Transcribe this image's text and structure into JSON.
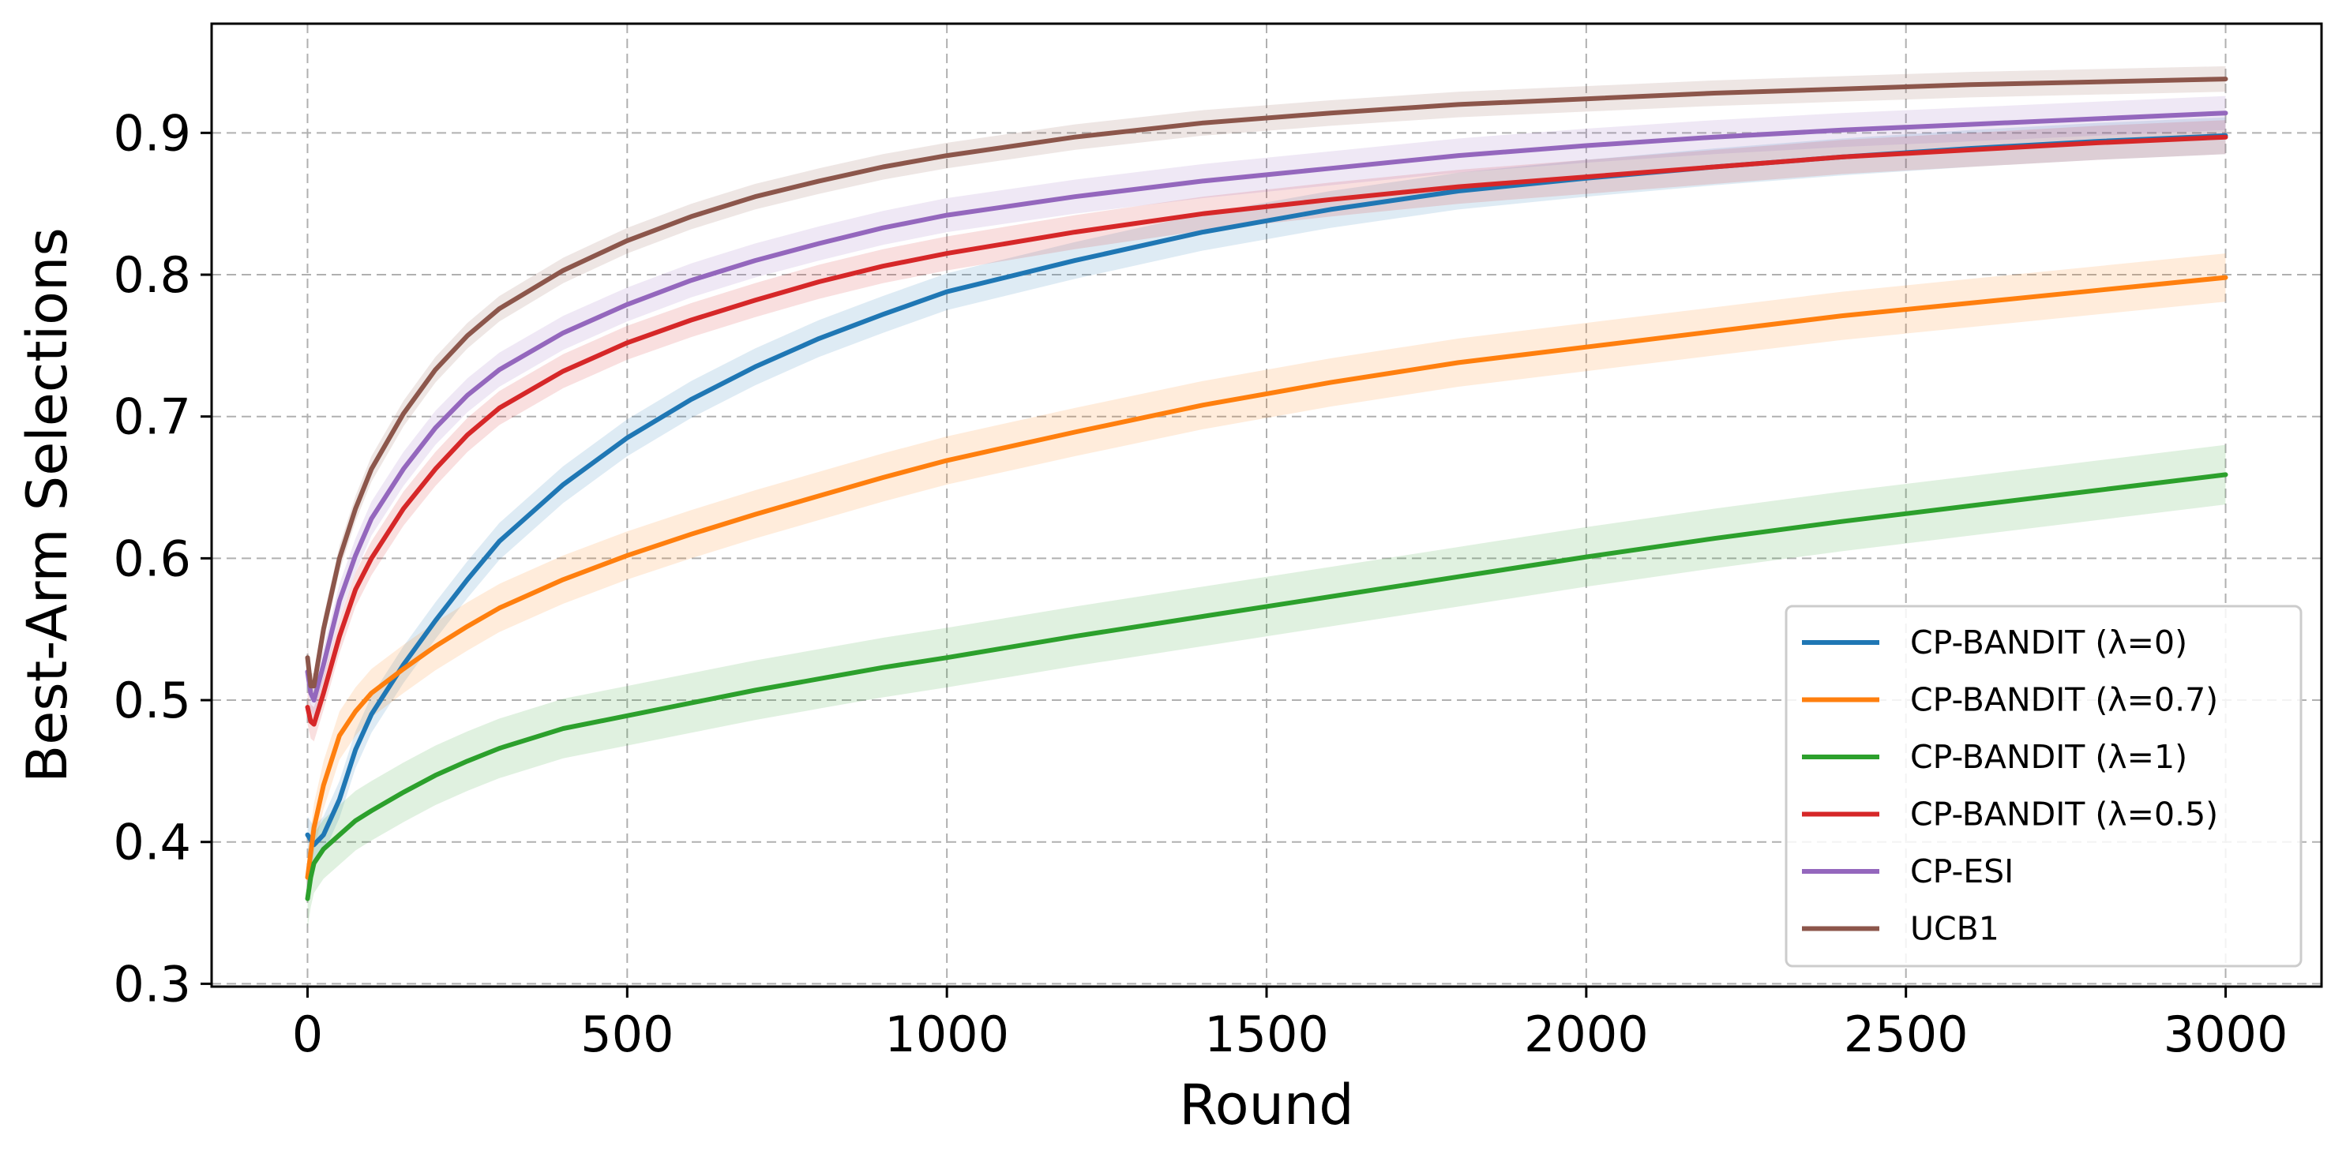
{
  "chart_data": {
    "type": "line",
    "title": "",
    "xlabel": "Round",
    "ylabel": "Best-Arm Selections",
    "xlim": [
      -150,
      3150
    ],
    "ylim": [
      0.298,
      0.977
    ],
    "xticks": [
      0,
      500,
      1000,
      1500,
      2000,
      2500,
      3000
    ],
    "yticks": [
      0.3,
      0.4,
      0.5,
      0.6,
      0.7,
      0.8,
      0.9
    ],
    "grid": true,
    "legend_position": "lower-right",
    "series": [
      {
        "name": "CP-BANDIT (λ=0)",
        "color": "#1f77b4",
        "x": [
          0,
          10,
          25,
          50,
          75,
          100,
          150,
          200,
          250,
          300,
          400,
          500,
          600,
          700,
          800,
          900,
          1000,
          1200,
          1400,
          1600,
          1800,
          2000,
          2200,
          2400,
          2600,
          2800,
          3000
        ],
        "y": [
          0.405,
          0.398,
          0.405,
          0.43,
          0.465,
          0.49,
          0.525,
          0.556,
          0.585,
          0.612,
          0.652,
          0.685,
          0.712,
          0.735,
          0.755,
          0.772,
          0.788,
          0.81,
          0.83,
          0.846,
          0.859,
          0.868,
          0.876,
          0.883,
          0.889,
          0.894,
          0.898
        ],
        "band": 0.013
      },
      {
        "name": "CP-BANDIT (λ=0.7)",
        "color": "#ff7f0e",
        "x": [
          0,
          10,
          25,
          50,
          75,
          100,
          150,
          200,
          250,
          300,
          400,
          500,
          600,
          700,
          800,
          900,
          1000,
          1200,
          1400,
          1600,
          1800,
          2000,
          2200,
          2400,
          2600,
          2800,
          3000
        ],
        "y": [
          0.375,
          0.41,
          0.44,
          0.475,
          0.492,
          0.505,
          0.522,
          0.538,
          0.552,
          0.565,
          0.585,
          0.602,
          0.617,
          0.631,
          0.644,
          0.657,
          0.669,
          0.689,
          0.708,
          0.724,
          0.738,
          0.749,
          0.76,
          0.771,
          0.78,
          0.789,
          0.798
        ],
        "band": 0.017
      },
      {
        "name": "CP-BANDIT (λ=1)",
        "color": "#2ca02c",
        "x": [
          0,
          5,
          10,
          25,
          50,
          75,
          100,
          150,
          200,
          250,
          300,
          400,
          500,
          600,
          700,
          800,
          900,
          1000,
          1200,
          1400,
          1600,
          1800,
          2000,
          2200,
          2400,
          2600,
          2800,
          3000
        ],
        "y": [
          0.36,
          0.375,
          0.385,
          0.395,
          0.405,
          0.415,
          0.422,
          0.435,
          0.447,
          0.457,
          0.466,
          0.48,
          0.489,
          0.498,
          0.507,
          0.515,
          0.523,
          0.53,
          0.545,
          0.559,
          0.573,
          0.587,
          0.601,
          0.614,
          0.626,
          0.637,
          0.648,
          0.659
        ],
        "band": 0.021
      },
      {
        "name": "CP-BANDIT (λ=0.5)",
        "color": "#d62728",
        "x": [
          0,
          5,
          10,
          25,
          50,
          75,
          100,
          150,
          200,
          250,
          300,
          400,
          500,
          600,
          700,
          800,
          900,
          1000,
          1200,
          1400,
          1600,
          1800,
          2000,
          2200,
          2400,
          2600,
          2800,
          3000
        ],
        "y": [
          0.495,
          0.485,
          0.483,
          0.505,
          0.545,
          0.578,
          0.6,
          0.635,
          0.663,
          0.687,
          0.706,
          0.732,
          0.752,
          0.768,
          0.782,
          0.795,
          0.806,
          0.815,
          0.83,
          0.843,
          0.853,
          0.862,
          0.869,
          0.876,
          0.883,
          0.888,
          0.893,
          0.897
        ],
        "band": 0.012
      },
      {
        "name": "CP-ESI",
        "color": "#9467bd",
        "x": [
          0,
          5,
          10,
          25,
          50,
          75,
          100,
          150,
          200,
          250,
          300,
          400,
          500,
          600,
          700,
          800,
          900,
          1000,
          1200,
          1400,
          1600,
          1800,
          2000,
          2200,
          2400,
          2600,
          2800,
          3000
        ],
        "y": [
          0.52,
          0.505,
          0.5,
          0.525,
          0.57,
          0.602,
          0.628,
          0.663,
          0.692,
          0.715,
          0.733,
          0.759,
          0.779,
          0.796,
          0.81,
          0.822,
          0.833,
          0.842,
          0.855,
          0.866,
          0.875,
          0.884,
          0.891,
          0.897,
          0.902,
          0.906,
          0.91,
          0.914
        ],
        "band": 0.012
      },
      {
        "name": "UCB1",
        "color": "#8c564b",
        "x": [
          0,
          5,
          10,
          25,
          50,
          75,
          100,
          150,
          200,
          250,
          300,
          400,
          500,
          600,
          700,
          800,
          900,
          1000,
          1200,
          1400,
          1600,
          1800,
          2000,
          2200,
          2400,
          2600,
          2800,
          3000
        ],
        "y": [
          0.53,
          0.51,
          0.51,
          0.55,
          0.6,
          0.635,
          0.663,
          0.702,
          0.733,
          0.757,
          0.776,
          0.803,
          0.824,
          0.841,
          0.855,
          0.866,
          0.876,
          0.884,
          0.897,
          0.907,
          0.914,
          0.92,
          0.924,
          0.928,
          0.931,
          0.934,
          0.936,
          0.938
        ],
        "band": 0.009
      }
    ]
  }
}
